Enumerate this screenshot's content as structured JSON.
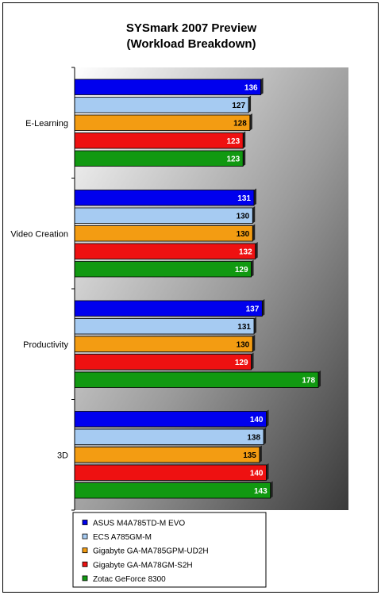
{
  "chart_data": {
    "type": "bar",
    "orientation": "horizontal",
    "title": "SYSmark 2007 Preview",
    "subtitle": "(Workload Breakdown)",
    "categories": [
      "E-Learning",
      "Video Creation",
      "Productivity",
      "3D"
    ],
    "xlim": [
      0,
      200
    ],
    "grid": false,
    "legend_position": "bottom",
    "series": [
      {
        "name": "ASUS M4A785TD-M EVO",
        "color": "#0000ee",
        "label_color": "#ffffff",
        "values": [
          136,
          131,
          137,
          140
        ]
      },
      {
        "name": "ECS A785GM-M",
        "color": "#a6cbf2",
        "label_color": "#000000",
        "values": [
          127,
          130,
          131,
          138
        ]
      },
      {
        "name": "Gigabyte GA-MA785GPM-UD2H",
        "color": "#f39c12",
        "label_color": "#000000",
        "values": [
          128,
          130,
          130,
          135
        ]
      },
      {
        "name": "Gigabyte GA-MA78GM-S2H",
        "color": "#ee1111",
        "label_color": "#ffffff",
        "values": [
          123,
          132,
          129,
          140
        ]
      },
      {
        "name": "Zotac GeForce 8300",
        "color": "#119911",
        "label_color": "#ffffff",
        "values": [
          123,
          129,
          178,
          143
        ]
      }
    ]
  }
}
